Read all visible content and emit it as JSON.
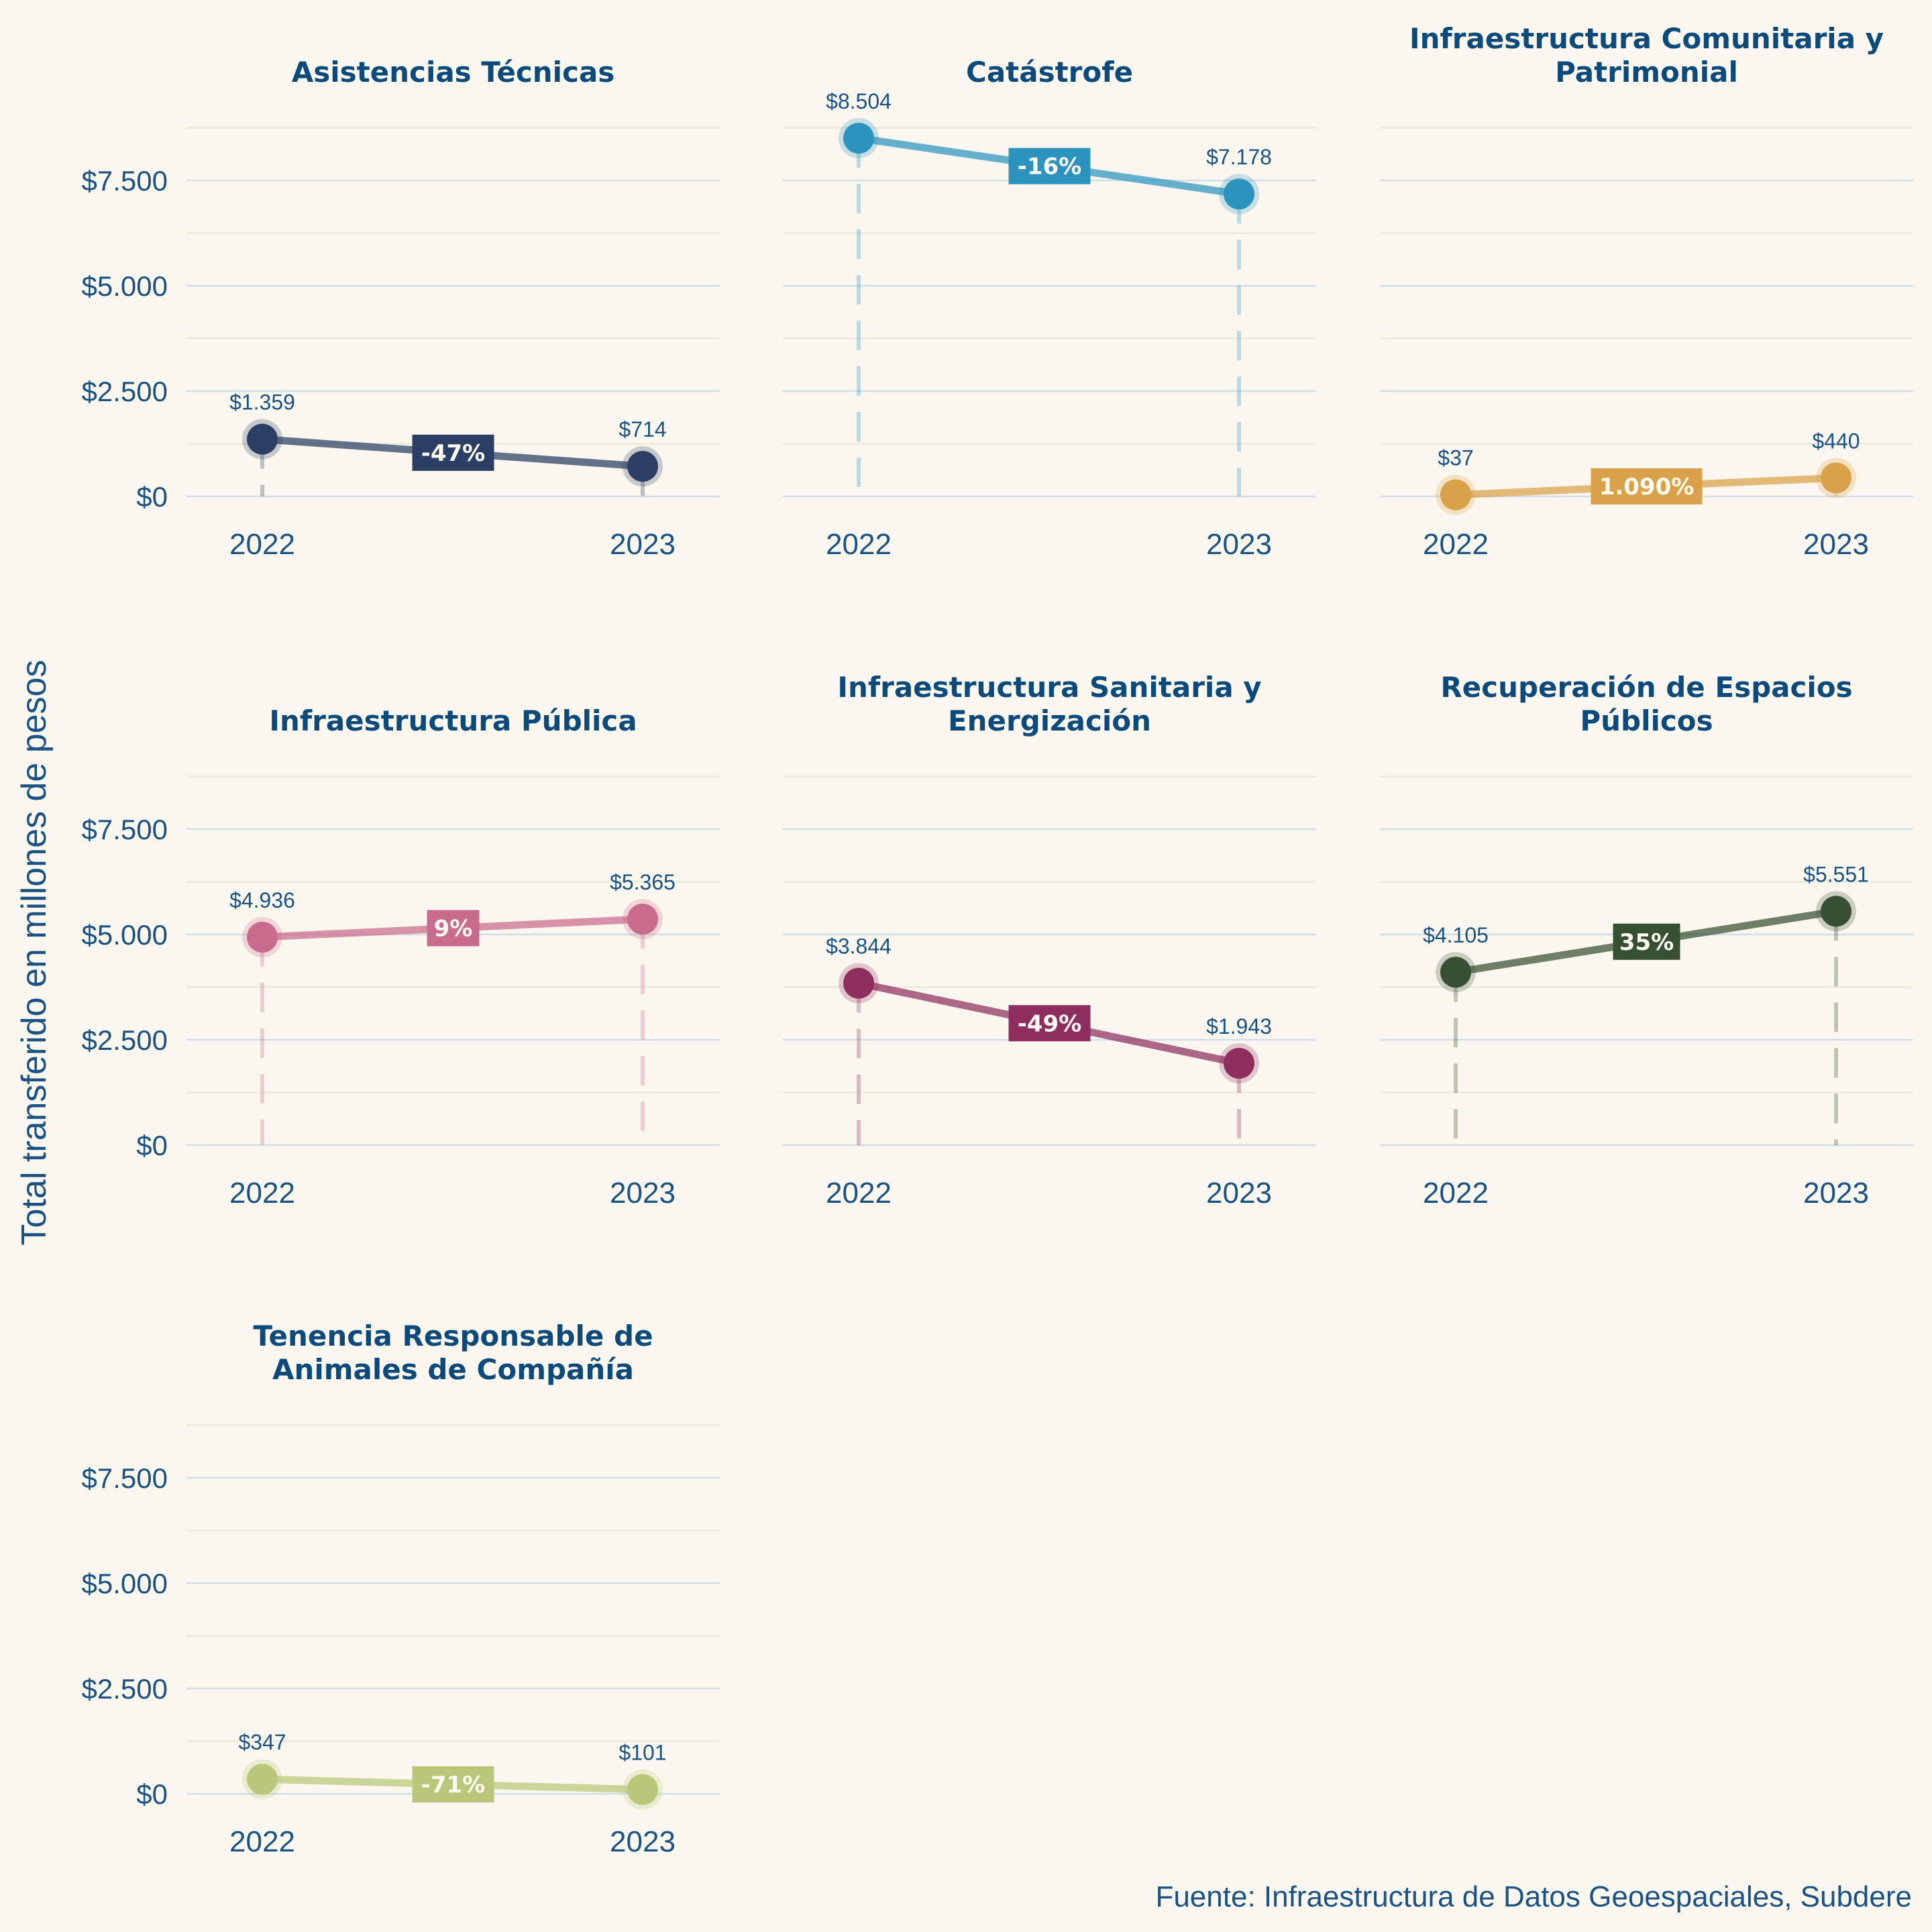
{
  "chart_data": {
    "type": "line",
    "ylabel": "Total transferido en millones de pesos",
    "source": "Fuente: Infraestructura de Datos Geoespaciales, Subdere",
    "x": [
      "2022",
      "2023"
    ],
    "ylim": [
      0,
      8750
    ],
    "yticks": [
      0,
      2500,
      5000,
      7500
    ],
    "ytick_labels": [
      "$0",
      "$2.500",
      "$5.000",
      "$7.500"
    ],
    "grid": true,
    "panels": [
      {
        "title": [
          "Asistencias Técnicas"
        ],
        "values": [
          1359,
          714
        ],
        "value_labels": [
          "$1.359",
          "$714"
        ],
        "change_label": "-47%",
        "color": "#2a3f63",
        "show_yticks": true
      },
      {
        "title": [
          "Catástrofe"
        ],
        "values": [
          8504,
          7178
        ],
        "value_labels": [
          "$8.504",
          "$7.178"
        ],
        "change_label": "-16%",
        "color": "#2c93bf",
        "show_yticks": false
      },
      {
        "title": [
          "Infraestructura Comunitaria y",
          "Patrimonial"
        ],
        "values": [
          37,
          440
        ],
        "value_labels": [
          "$37",
          "$440"
        ],
        "change_label": "1.090%",
        "color": "#d9a14a",
        "show_yticks": false
      },
      {
        "title": [
          "Infraestructura Pública"
        ],
        "values": [
          4936,
          5365
        ],
        "value_labels": [
          "$4.936",
          "$5.365"
        ],
        "change_label": "9%",
        "color": "#c96b8c",
        "show_yticks": true
      },
      {
        "title": [
          "Infraestructura Sanitaria y",
          "Energización"
        ],
        "values": [
          3844,
          1943
        ],
        "value_labels": [
          "$3.844",
          "$1.943"
        ],
        "change_label": "-49%",
        "color": "#8e2e5e",
        "show_yticks": false
      },
      {
        "title": [
          "Recuperación de Espacios",
          "Públicos"
        ],
        "values": [
          4105,
          5551
        ],
        "value_labels": [
          "$4.105",
          "$5.551"
        ],
        "change_label": "35%",
        "color": "#374f33",
        "show_yticks": false
      },
      {
        "title": [
          "Tenencia Responsable de",
          "Animales de Compañía"
        ],
        "values": [
          347,
          101
        ],
        "value_labels": [
          "$347",
          "$101"
        ],
        "change_label": "-71%",
        "color": "#b8c77a",
        "show_yticks": true
      }
    ]
  }
}
